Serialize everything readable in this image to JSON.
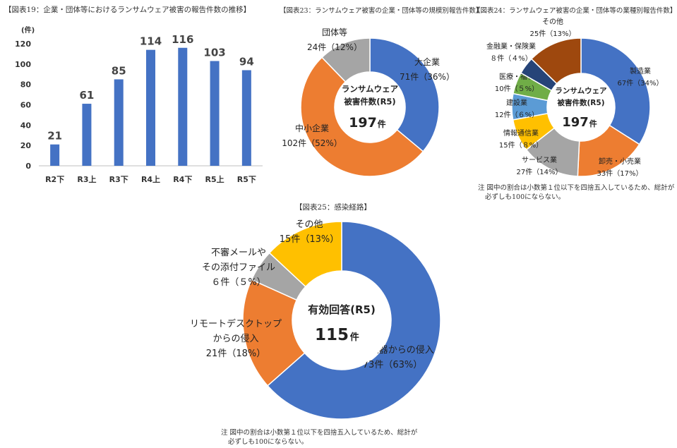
{
  "headers": {
    "fig19": "【図表19：企業・団体等におけるランサムウェア被害の報告件数の推移】",
    "fig23": "【図表23：ランサムウェア被害の企業・団体等の規模別報告件数】",
    "fig24": "【図表24：ランサムウェア被害の企業・団体等の業種別報告件数】",
    "fig25": "【図表25：感染経路】"
  },
  "notes": {
    "fig24": [
      "注 図中の割合は小数第１位以下を四捨五入しているため、総計が",
      "必ずしも100にならない。"
    ],
    "fig25": [
      "注 図中の割合は小数第１位以下を四捨五入しているため、総計が",
      "必ずしも100にならない。"
    ]
  },
  "chart_data": [
    {
      "id": "fig19",
      "type": "bar",
      "unit_label": "(件)",
      "categories": [
        "R2下",
        "R3上",
        "R3下",
        "R4上",
        "R4下",
        "R5上",
        "R5下"
      ],
      "values": [
        21,
        61,
        85,
        114,
        116,
        103,
        94
      ],
      "ylim": [
        0,
        120
      ],
      "yticks": [
        0,
        20,
        40,
        60,
        80,
        100,
        120
      ],
      "grid": false,
      "color": "#4472C4"
    },
    {
      "id": "fig23",
      "type": "pie",
      "donut": true,
      "center": [
        "ランサムウェア",
        "被害件数(R5)"
      ],
      "center_value": "197",
      "center_unit": "件",
      "slices": [
        {
          "label": [
            "大企業",
            "71件（36%）"
          ],
          "value": 71,
          "color": "#4472C4"
        },
        {
          "label": [
            "中小企業",
            "102件（52%）"
          ],
          "value": 102,
          "color": "#ED7D31"
        },
        {
          "label": [
            "団体等",
            "24件（12%）"
          ],
          "value": 24,
          "color": "#A5A5A5"
        }
      ]
    },
    {
      "id": "fig24",
      "type": "pie",
      "donut": true,
      "center": [
        "ランサムウェア",
        "被害件数(R5)"
      ],
      "center_value": "197",
      "center_unit": "件",
      "slices": [
        {
          "label": [
            "製造業",
            "67件（34%）"
          ],
          "value": 67,
          "color": "#4472C4"
        },
        {
          "label": [
            "卸売・小売業",
            "33件（17%）"
          ],
          "value": 33,
          "color": "#ED7D31"
        },
        {
          "label": [
            "サービス業",
            "27件（14%）"
          ],
          "value": 27,
          "color": "#A5A5A5"
        },
        {
          "label": [
            "情報通信業",
            "15件（８%）"
          ],
          "value": 15,
          "color": "#FFC000"
        },
        {
          "label": [
            "建設業",
            "12件（６%）"
          ],
          "value": 12,
          "color": "#5B9BD5"
        },
        {
          "label": [
            "医療・福祉",
            "10件（５%）"
          ],
          "value": 10,
          "color": "#70AD47"
        },
        {
          "label": [
            "金融業・保険業",
            "８件（４%）"
          ],
          "value": 8,
          "color": "#264478"
        },
        {
          "label": [
            "その他",
            "25件（13%）"
          ],
          "value": 25,
          "color": "#9E480E"
        }
      ]
    },
    {
      "id": "fig25",
      "type": "pie",
      "donut": true,
      "center": [
        "有効回答(R5)"
      ],
      "center_value": "115",
      "center_unit": "件",
      "slices": [
        {
          "label": [
            "VPN機器からの侵入",
            "73件（63%）"
          ],
          "value": 73,
          "color": "#4472C4"
        },
        {
          "label": [
            "リモートデスクトップ",
            "からの侵入",
            "21件（18%）"
          ],
          "value": 21,
          "color": "#ED7D31"
        },
        {
          "label": [
            "不審メールや",
            "その添付ファイル",
            "６件（５%）"
          ],
          "value": 6,
          "color": "#A5A5A5"
        },
        {
          "label": [
            "その他",
            "15件（13%）"
          ],
          "value": 15,
          "color": "#FFC000"
        }
      ]
    }
  ]
}
